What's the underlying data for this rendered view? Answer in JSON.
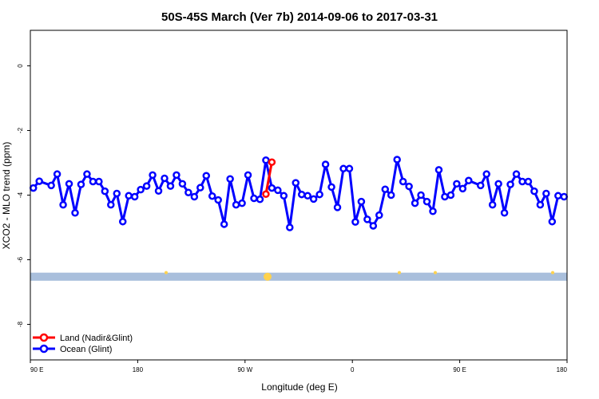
{
  "chart_data": {
    "type": "line",
    "title": "50S-45S March (Ver 7b)   2014-09-06 to 2017-03-31",
    "xlabel": "Longitude (deg E)",
    "ylabel": "XCO2 - MLO trend (ppm)",
    "xlim": [
      90,
      540
    ],
    "ylim": [
      -9.1,
      1.1
    ],
    "x_ticks": [
      {
        "value": 90,
        "label": "90 E"
      },
      {
        "value": 180,
        "label": "180"
      },
      {
        "value": 270,
        "label": "90 W"
      },
      {
        "value": 360,
        "label": "0"
      },
      {
        "value": 450,
        "label": "90 E"
      },
      {
        "value": 540,
        "label": "180"
      }
    ],
    "y_ticks": [
      {
        "value": 0,
        "label": "0"
      },
      {
        "value": -2,
        "label": "-2"
      },
      {
        "value": -4,
        "label": "-4"
      },
      {
        "value": -6,
        "label": "-6"
      },
      {
        "value": -8,
        "label": "-8"
      }
    ],
    "legend_position": "bottom-left",
    "series": [
      {
        "name": "Land (Nadir&Glint)",
        "color": "#ff0000",
        "x": [
          287.5,
          292.5
        ],
        "y": [
          -3.97,
          -2.98
        ]
      },
      {
        "name": "Ocean (Glint)",
        "color": "#0000ff",
        "x": [
          92.5,
          97.5,
          107.5,
          112.5,
          117.5,
          122.5,
          127.5,
          132.5,
          137.5,
          142.5,
          147.5,
          152.5,
          157.5,
          162.5,
          167.5,
          172.5,
          177.5,
          182.5,
          187.5,
          192.5,
          197.5,
          202.5,
          207.5,
          212.5,
          217.5,
          222.5,
          227.5,
          232.5,
          237.5,
          242.5,
          247.5,
          252.5,
          257.5,
          262.5,
          267.5,
          272.5,
          277.5,
          282.5,
          287.5,
          292.5,
          297.5,
          302.5,
          307.5,
          312.5,
          317.5,
          322.5,
          327.5,
          332.5,
          337.5,
          342.5,
          347.5,
          352.5,
          357.5,
          362.5,
          367.5,
          372.5,
          377.5,
          382.5,
          387.5,
          392.5,
          397.5,
          402.5,
          407.5,
          412.5,
          417.5,
          422.5,
          427.5,
          432.5,
          437.5,
          442.5,
          447.5,
          452.5,
          457.5,
          467.5,
          472.5,
          477.5,
          482.5,
          487.5,
          492.5,
          497.5,
          502.5,
          507.5,
          512.5,
          517.5,
          522.5,
          527.5,
          532.5,
          537.5
        ],
        "y": [
          -3.78,
          -3.57,
          -3.7,
          -3.35,
          -4.3,
          -3.65,
          -4.55,
          -3.67,
          -3.35,
          -3.58,
          -3.58,
          -3.88,
          -4.3,
          -3.95,
          -4.82,
          -4.02,
          -4.05,
          -3.83,
          -3.72,
          -3.38,
          -3.87,
          -3.48,
          -3.72,
          -3.38,
          -3.65,
          -3.92,
          -4.05,
          -3.77,
          -3.4,
          -4.03,
          -4.15,
          -4.9,
          -3.5,
          -4.3,
          -4.25,
          -3.38,
          -4.1,
          -4.13,
          -2.92,
          -3.78,
          -3.85,
          -4.02,
          -5.0,
          -3.62,
          -3.98,
          -4.02,
          -4.12,
          -3.98,
          -3.05,
          -3.75,
          -4.38,
          -3.18,
          -3.18,
          -4.83,
          -4.2,
          -4.75,
          -4.95,
          -4.62,
          -3.82,
          -4.0,
          -2.9,
          -3.58,
          -3.73,
          -4.25,
          -4.0,
          -4.2,
          -4.5,
          -3.22,
          -4.05,
          -4.0,
          -3.65,
          -3.8,
          -3.55,
          -3.7,
          -3.35,
          -4.3,
          -3.65,
          -4.55,
          -3.67,
          -3.35,
          -3.58,
          -3.58,
          -3.88,
          -4.3,
          -3.95,
          -4.82,
          -4.02,
          -4.05
        ]
      }
    ],
    "data_band": {
      "y_range": [
        -6.4,
        -6.65
      ],
      "color": "#a9bfdc",
      "marker_color": "#ffd24d"
    }
  }
}
